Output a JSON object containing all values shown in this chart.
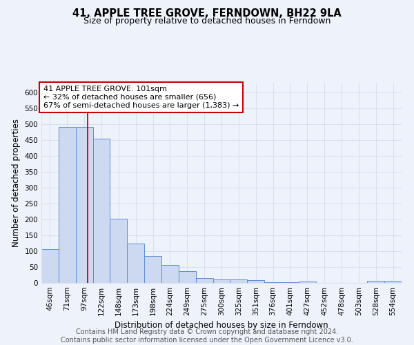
{
  "title": "41, APPLE TREE GROVE, FERNDOWN, BH22 9LA",
  "subtitle": "Size of property relative to detached houses in Ferndown",
  "xlabel": "Distribution of detached houses by size in Ferndown",
  "ylabel": "Number of detached properties",
  "footer_line1": "Contains HM Land Registry data © Crown copyright and database right 2024.",
  "footer_line2": "Contains public sector information licensed under the Open Government Licence v3.0.",
  "categories": [
    "46sqm",
    "71sqm",
    "97sqm",
    "122sqm",
    "148sqm",
    "173sqm",
    "198sqm",
    "224sqm",
    "249sqm",
    "275sqm",
    "300sqm",
    "325sqm",
    "351sqm",
    "376sqm",
    "401sqm",
    "427sqm",
    "452sqm",
    "478sqm",
    "503sqm",
    "528sqm",
    "554sqm"
  ],
  "values": [
    106,
    490,
    490,
    455,
    202,
    124,
    84,
    56,
    37,
    16,
    10,
    10,
    8,
    2,
    2,
    5,
    1,
    1,
    1,
    7,
    6
  ],
  "bar_color": "#ccd9f0",
  "bar_edge_color": "#5b8dd9",
  "property_line_x": 2.18,
  "annotation_text_line1": "41 APPLE TREE GROVE: 101sqm",
  "annotation_text_line2": "← 32% of detached houses are smaller (656)",
  "annotation_text_line3": "67% of semi-detached houses are larger (1,383) →",
  "annotation_box_color": "#ffffff",
  "annotation_box_edge_color": "#cc0000",
  "red_line_color": "#cc0000",
  "ylim": [
    0,
    630
  ],
  "ytick_interval": 50,
  "background_color": "#eef2fb",
  "grid_color": "#d8e0f0",
  "title_fontsize": 10.5,
  "subtitle_fontsize": 9,
  "axis_label_fontsize": 8.5,
  "tick_fontsize": 7.5,
  "annotation_fontsize": 8,
  "footer_fontsize": 7
}
